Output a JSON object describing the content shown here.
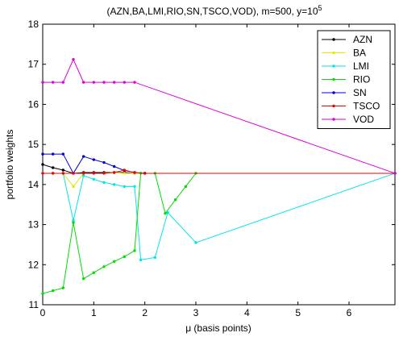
{
  "chart_data": {
    "type": "line",
    "title_parts": {
      "main": "(AZN,BA,LMI,RIO,SN,TSCO,VOD), m=500, y=10",
      "superscript": "5"
    },
    "xlabel": "μ (basis points)",
    "ylabel": "portfolio weights",
    "xlim": [
      0,
      6.9
    ],
    "ylim": [
      11,
      18
    ],
    "xticks": [
      0,
      1,
      2,
      3,
      4,
      5,
      6
    ],
    "yticks": [
      11,
      12,
      13,
      14,
      15,
      16,
      17,
      18
    ],
    "grid": false,
    "legend_position": "top-right",
    "series": [
      {
        "name": "AZN",
        "color": "#000000",
        "x": [
          0,
          0.2,
          0.4,
          0.6,
          0.8,
          1.0,
          1.2,
          1.4,
          1.6,
          1.8,
          2.0,
          6.9
        ],
        "y": [
          14.5,
          14.42,
          14.36,
          14.28,
          14.3,
          14.3,
          14.3,
          14.3,
          14.3,
          14.28,
          14.28,
          14.28
        ]
      },
      {
        "name": "BA",
        "color": "#e6e600",
        "x": [
          0,
          0.2,
          0.4,
          0.6,
          0.8,
          1.0,
          1.2,
          1.4,
          1.6,
          1.8,
          2.0,
          6.9
        ],
        "y": [
          14.28,
          14.28,
          14.28,
          13.95,
          14.28,
          14.28,
          14.28,
          14.3,
          14.28,
          14.28,
          14.28,
          14.28
        ]
      },
      {
        "name": "LMI",
        "color": "#00e5e5",
        "x": [
          0,
          0.2,
          0.4,
          0.6,
          0.8,
          1.0,
          1.2,
          1.4,
          1.6,
          1.8,
          1.92,
          2.2,
          2.45,
          3.0,
          6.9
        ],
        "y": [
          14.28,
          14.28,
          14.28,
          13.1,
          14.22,
          14.13,
          14.05,
          14.0,
          13.95,
          13.95,
          12.12,
          12.18,
          13.3,
          12.55,
          14.28
        ]
      },
      {
        "name": "RIO",
        "color": "#00dd00",
        "x": [
          0,
          0.2,
          0.4,
          0.6,
          0.8,
          1.0,
          1.2,
          1.4,
          1.6,
          1.8,
          1.92,
          2.2,
          2.4,
          2.6,
          2.8,
          3.0,
          6.9
        ],
        "y": [
          11.28,
          11.35,
          11.42,
          13.05,
          11.65,
          11.8,
          11.95,
          12.08,
          12.2,
          12.35,
          14.28,
          14.28,
          13.28,
          13.62,
          13.95,
          14.28,
          14.28
        ]
      },
      {
        "name": "SN",
        "color": "#0000cc",
        "x": [
          0,
          0.2,
          0.4,
          0.6,
          0.8,
          1.0,
          1.2,
          1.4,
          1.6,
          1.8,
          2.0,
          6.9
        ],
        "y": [
          14.76,
          14.76,
          14.76,
          14.28,
          14.7,
          14.62,
          14.55,
          14.45,
          14.35,
          14.3,
          14.28,
          14.28
        ]
      },
      {
        "name": "TSCO",
        "color": "#ee0000",
        "x": [
          0,
          0.2,
          0.4,
          0.6,
          0.8,
          1.0,
          1.2,
          1.4,
          1.6,
          1.8,
          2.0,
          6.9
        ],
        "y": [
          14.28,
          14.28,
          14.28,
          14.28,
          14.28,
          14.28,
          14.28,
          14.3,
          14.36,
          14.3,
          14.28,
          14.28
        ]
      },
      {
        "name": "VOD",
        "color": "#dd00dd",
        "x": [
          0,
          0.2,
          0.4,
          0.6,
          0.8,
          1.0,
          1.2,
          1.4,
          1.6,
          1.8,
          6.9
        ],
        "y": [
          16.55,
          16.55,
          16.55,
          17.12,
          16.55,
          16.55,
          16.55,
          16.55,
          16.55,
          16.55,
          14.28
        ]
      }
    ]
  }
}
